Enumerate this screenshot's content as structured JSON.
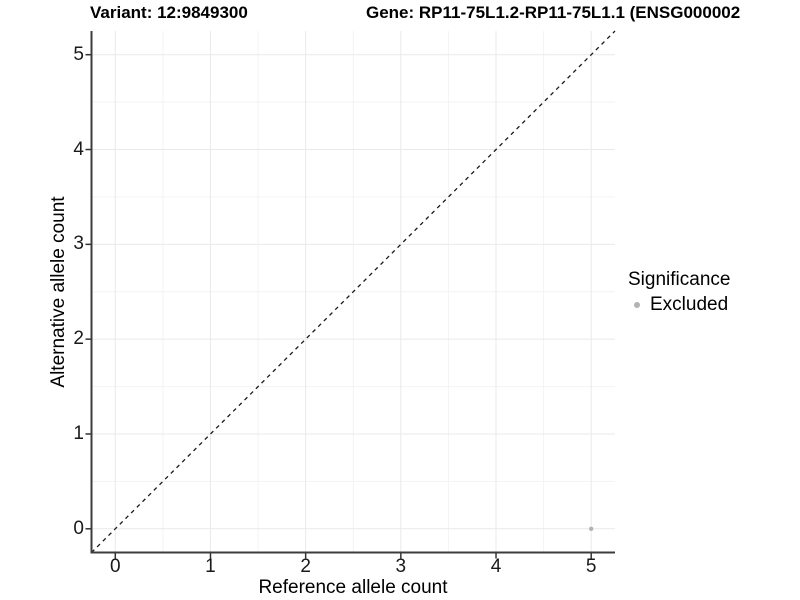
{
  "chart_data": {
    "type": "scatter",
    "title_variant": "Variant: 12:9849300",
    "title_gene": "Gene: RP11-75L1.2-RP11-75L1.1 (ENSG000002",
    "xlabel": "Reference allele count",
    "ylabel": "Alternative allele count",
    "xlim": [
      -0.25,
      5.25
    ],
    "ylim": [
      -0.25,
      5.25
    ],
    "x_ticks": [
      0,
      1,
      2,
      3,
      4,
      5
    ],
    "y_ticks": [
      0,
      1,
      2,
      3,
      4,
      5
    ],
    "x_minor_ticks": [
      0.5,
      1.5,
      2.5,
      3.5,
      4.5
    ],
    "y_minor_ticks": [
      0.5,
      1.5,
      2.5,
      3.5,
      4.5
    ],
    "grid": true,
    "identity_line": {
      "slope": 1,
      "intercept": 0,
      "style": "dashed",
      "color": "#1a1a1a"
    },
    "series": [
      {
        "name": "Excluded",
        "points": [
          {
            "x": 5,
            "y": 0
          }
        ]
      }
    ],
    "legend": {
      "title": "Significance",
      "position": "right",
      "items": [
        {
          "label": "Excluded",
          "color": "#b3b3b3"
        }
      ]
    },
    "colors": {
      "excluded": "#b3b3b3",
      "grid_major": "#e9e9e9",
      "grid_minor": "#f3f3f3",
      "axis_line": "#3c3c3c",
      "tick_mark": "#333333",
      "text": "#000000"
    }
  }
}
